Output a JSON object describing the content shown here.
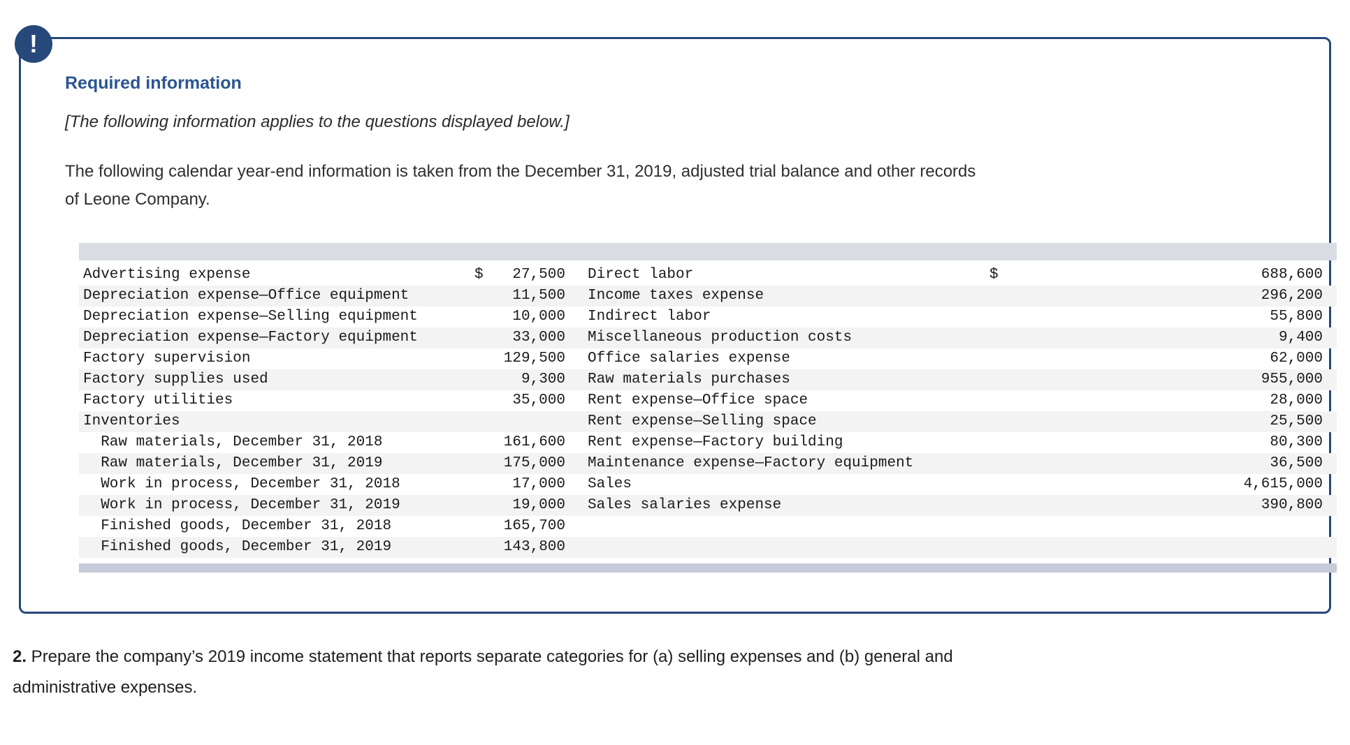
{
  "colors": {
    "navy": "#26487B",
    "title-blue": "#2B5590",
    "stripe": "#F3F3F4",
    "bar-top": "#D9DCE3",
    "bar-bottom": "#C5CBD9"
  },
  "panel": {
    "badge_glyph": "!",
    "title": "Required information",
    "note": "[The following information applies to the questions displayed below.]",
    "intro_line1": "The following calendar year-end information is taken from the December 31, 2019, adjusted trial balance and other records",
    "intro_line2": "of Leone Company."
  },
  "table": {
    "rows": [
      {
        "l": "Advertising expense",
        "ld": "$",
        "lv": "27,500",
        "r": "Direct labor",
        "rd": "$",
        "rv": "688,600"
      },
      {
        "l": "Depreciation expense—Office equipment",
        "ld": "",
        "lv": "11,500",
        "r": "Income taxes expense",
        "rd": "",
        "rv": "296,200"
      },
      {
        "l": "Depreciation expense—Selling equipment",
        "ld": "",
        "lv": "10,000",
        "r": "Indirect labor",
        "rd": "",
        "rv": "55,800"
      },
      {
        "l": "Depreciation expense—Factory equipment",
        "ld": "",
        "lv": "33,000",
        "r": "Miscellaneous production costs",
        "rd": "",
        "rv": "9,400"
      },
      {
        "l": "Factory supervision",
        "ld": "",
        "lv": "129,500",
        "r": "Office salaries expense",
        "rd": "",
        "rv": "62,000"
      },
      {
        "l": "Factory supplies used",
        "ld": "",
        "lv": "9,300",
        "r": "Raw materials purchases",
        "rd": "",
        "rv": "955,000"
      },
      {
        "l": "Factory utilities",
        "ld": "",
        "lv": "35,000",
        "r": "Rent expense—Office space",
        "rd": "",
        "rv": "28,000"
      },
      {
        "l": "Inventories",
        "ld": "",
        "lv": "",
        "r": "Rent expense—Selling space",
        "rd": "",
        "rv": "25,500"
      },
      {
        "l": "  Raw materials, December 31, 2018",
        "ld": "",
        "lv": "161,600",
        "r": "Rent expense—Factory building",
        "rd": "",
        "rv": "80,300"
      },
      {
        "l": "  Raw materials, December 31, 2019",
        "ld": "",
        "lv": "175,000",
        "r": "Maintenance expense—Factory equipment",
        "rd": "",
        "rv": "36,500"
      },
      {
        "l": "  Work in process, December 31, 2018",
        "ld": "",
        "lv": "17,000",
        "r": "Sales",
        "rd": "",
        "rv": "4,615,000"
      },
      {
        "l": "  Work in process, December 31, 2019",
        "ld": "",
        "lv": "19,000",
        "r": "Sales salaries expense",
        "rd": "",
        "rv": "390,800"
      },
      {
        "l": "  Finished goods, December 31, 2018",
        "ld": "",
        "lv": "165,700",
        "r": "",
        "rd": "",
        "rv": ""
      },
      {
        "l": "  Finished goods, December 31, 2019",
        "ld": "",
        "lv": "143,800",
        "r": "",
        "rd": "",
        "rv": ""
      }
    ]
  },
  "question": {
    "number": "2.",
    "line1": " Prepare the company’s 2019 income statement that reports separate categories for (a) selling expenses and (b) general and",
    "line2": "administrative expenses."
  }
}
